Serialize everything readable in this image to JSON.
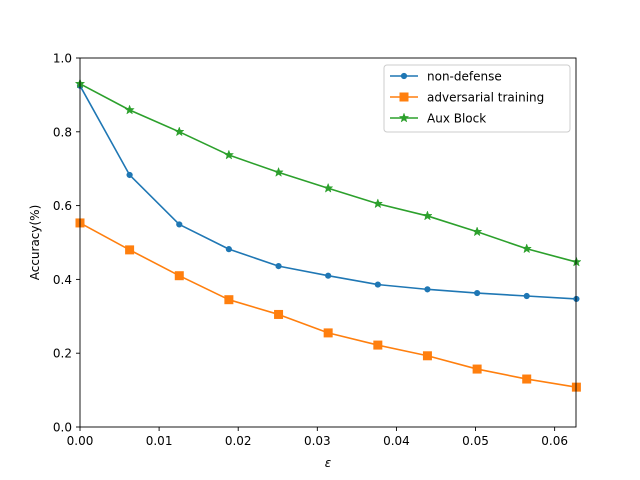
{
  "chart_data": {
    "type": "line",
    "title": "",
    "xlabel": "ε",
    "ylabel": "Accuracy(%)",
    "xlim": [
      0,
      0.0627
    ],
    "ylim": [
      0,
      1.0
    ],
    "xticks": [
      0.0,
      0.01,
      0.02,
      0.03,
      0.04,
      0.05,
      0.06
    ],
    "xtick_labels": [
      "0.00",
      "0.01",
      "0.02",
      "0.03",
      "0.04",
      "0.05",
      "0.06"
    ],
    "yticks": [
      0.0,
      0.2,
      0.4,
      0.6,
      0.8,
      1.0
    ],
    "ytick_labels": [
      "0.0",
      "0.2",
      "0.4",
      "0.6",
      "0.8",
      "1.0"
    ],
    "grid": false,
    "legend_position": "top-right",
    "x": [
      0.0,
      0.00627,
      0.01255,
      0.01882,
      0.0251,
      0.03137,
      0.03765,
      0.04392,
      0.0502,
      0.05647,
      0.06275
    ],
    "series": [
      {
        "name": "non-defense",
        "color": "#1f77b4",
        "marker": "circle",
        "values": [
          0.925,
          0.683,
          0.549,
          0.482,
          0.436,
          0.41,
          0.386,
          0.373,
          0.363,
          0.355,
          0.347
        ]
      },
      {
        "name": "adversarial training",
        "color": "#ff7f0e",
        "marker": "square",
        "values": [
          0.553,
          0.48,
          0.41,
          0.345,
          0.305,
          0.255,
          0.222,
          0.193,
          0.157,
          0.13,
          0.108
        ]
      },
      {
        "name": "Aux Block",
        "color": "#2ca02c",
        "marker": "star",
        "values": [
          0.93,
          0.859,
          0.8,
          0.737,
          0.69,
          0.647,
          0.605,
          0.572,
          0.529,
          0.483,
          0.447
        ]
      }
    ]
  }
}
